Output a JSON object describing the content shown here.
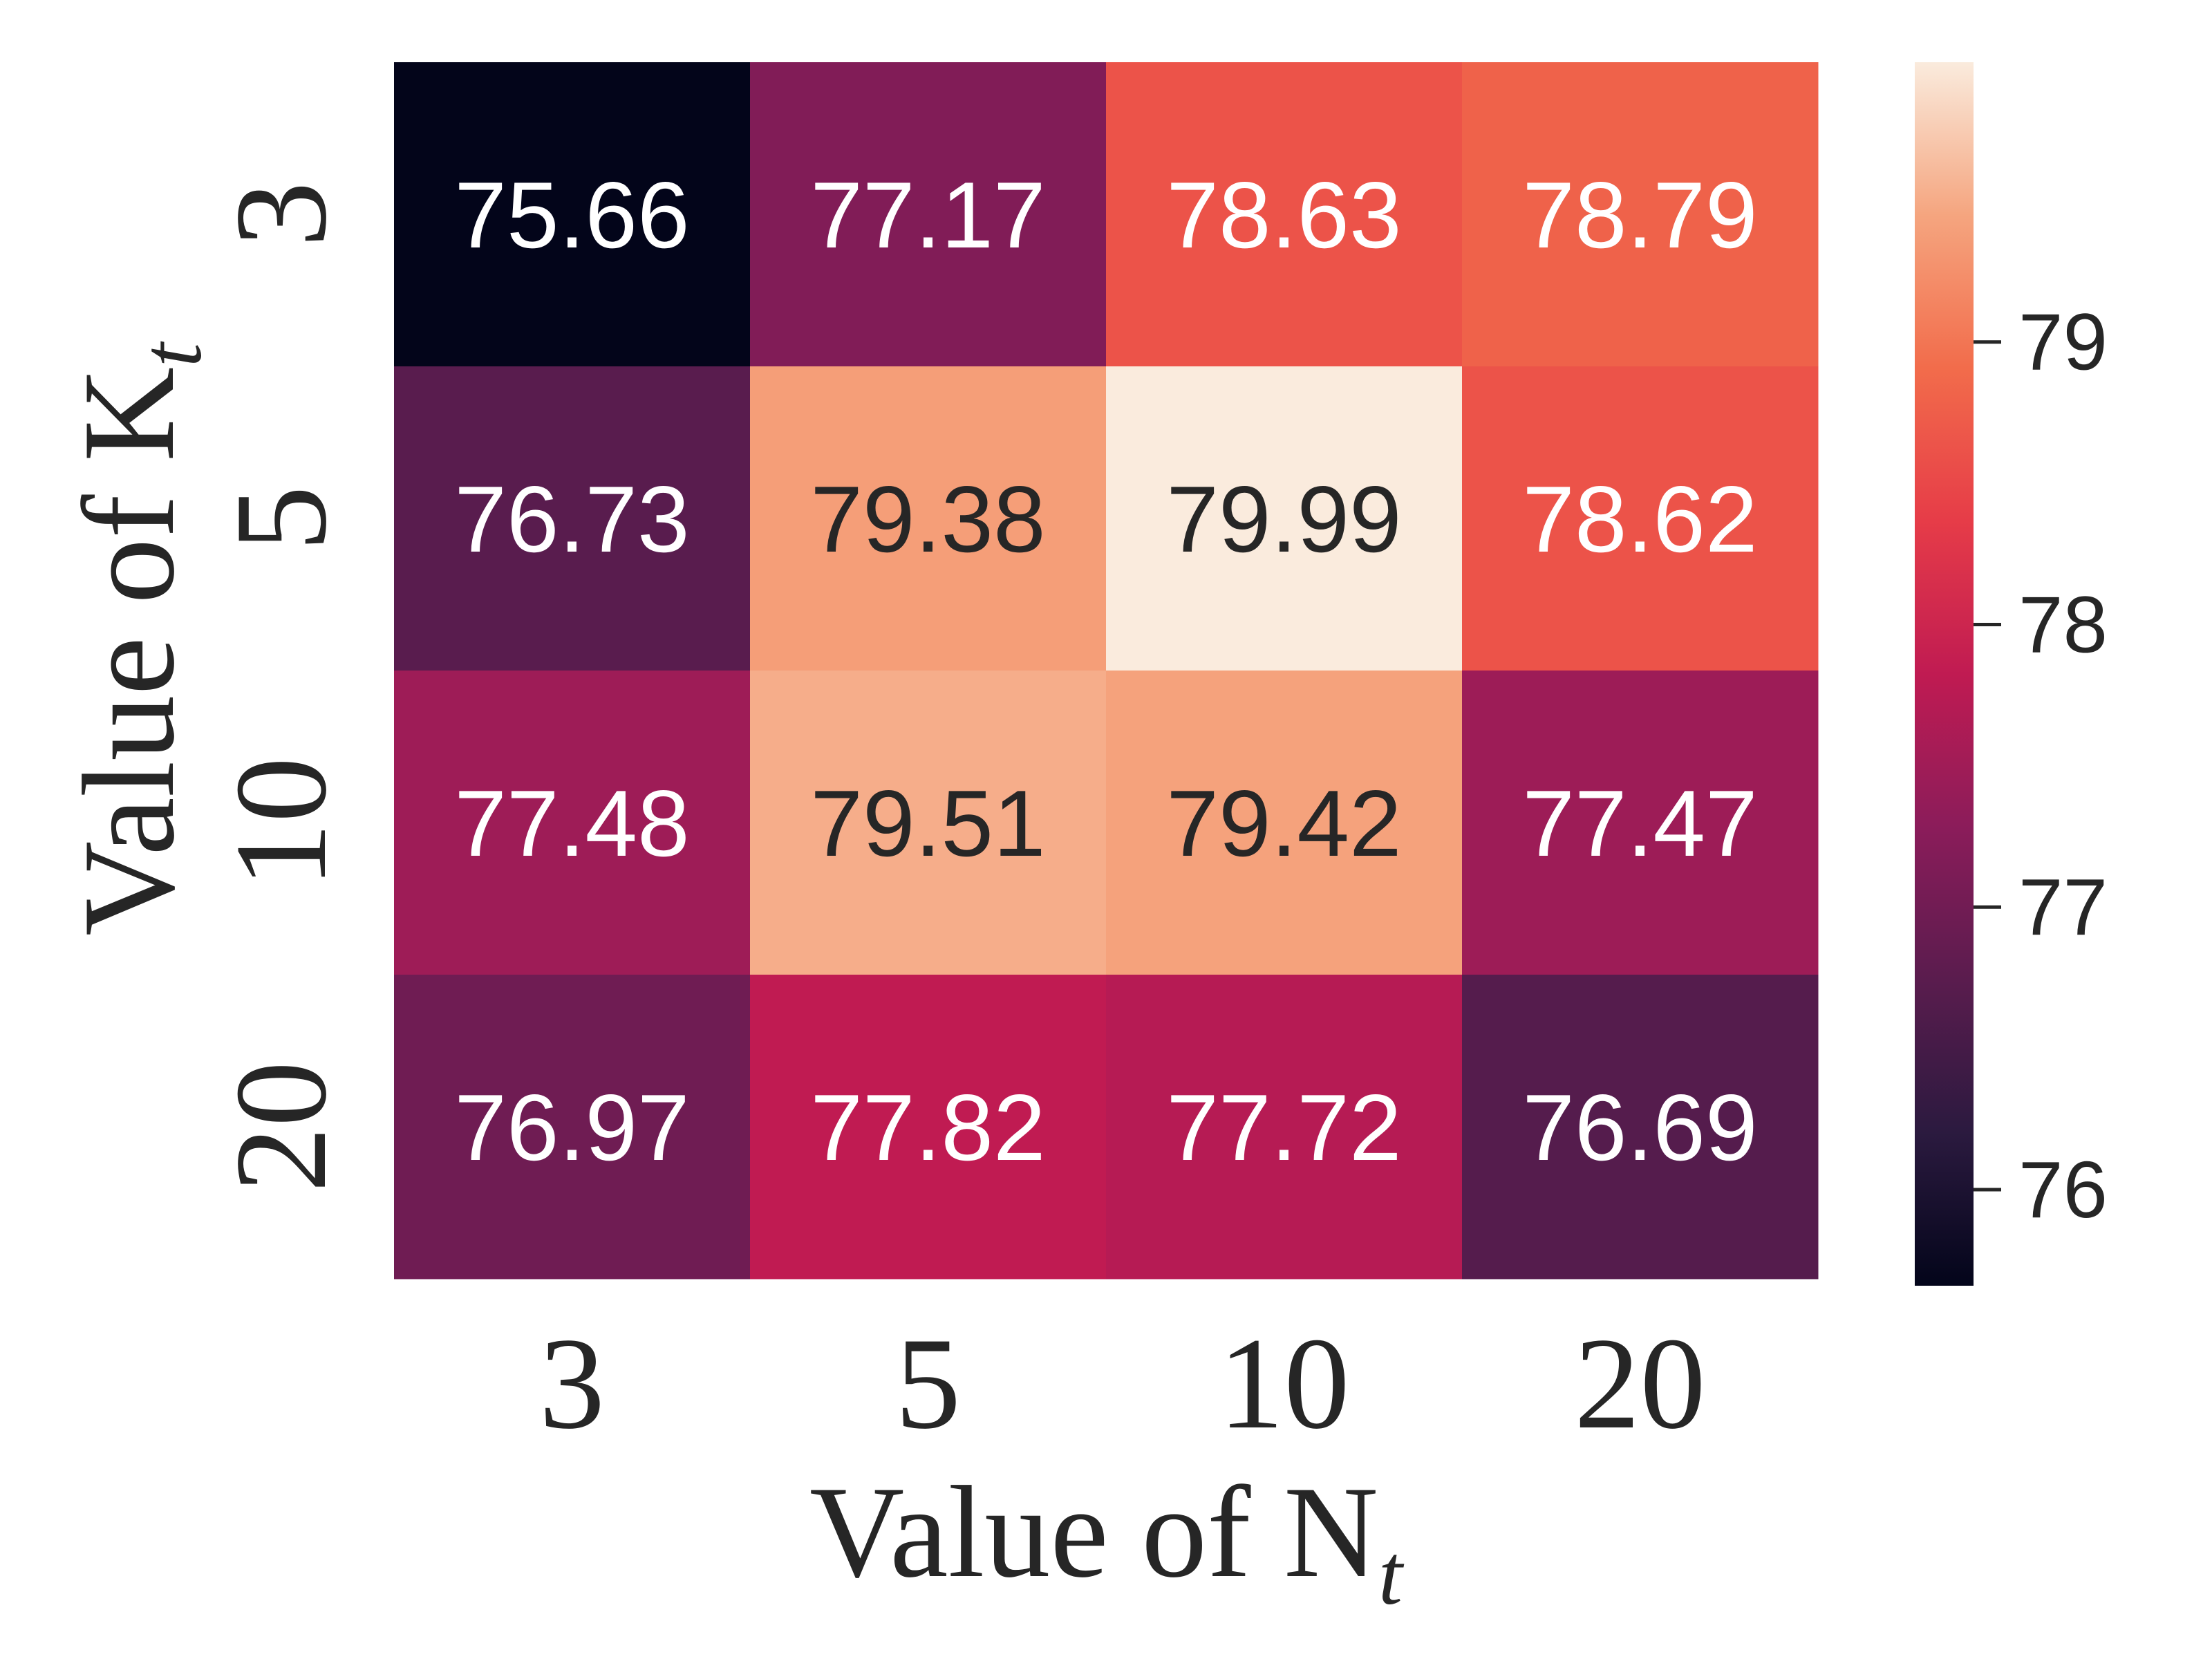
{
  "chart_data": {
    "type": "heatmap",
    "xlabel": "Value of N",
    "xlabel_subscript": "t",
    "ylabel": "Value of K",
    "ylabel_subscript": "t",
    "x_categories": [
      "3",
      "5",
      "10",
      "20"
    ],
    "y_categories": [
      "3",
      "5",
      "10",
      "20"
    ],
    "values": [
      [
        75.66,
        77.17,
        78.63,
        78.79
      ],
      [
        76.73,
        79.38,
        79.99,
        78.62
      ],
      [
        77.48,
        79.51,
        79.42,
        77.47
      ],
      [
        76.97,
        77.82,
        77.72,
        76.69
      ]
    ],
    "value_format": "0.00",
    "colormap": "rocket",
    "colorbar": {
      "min": 75.66,
      "max": 79.99,
      "ticks": [
        76,
        77,
        78,
        79
      ],
      "tick_labels": [
        "76",
        "77",
        "78",
        "79"
      ]
    },
    "colors": {
      "text_light": "#ffffff",
      "text_dark": "#262626",
      "axis_text": "#262626"
    }
  }
}
